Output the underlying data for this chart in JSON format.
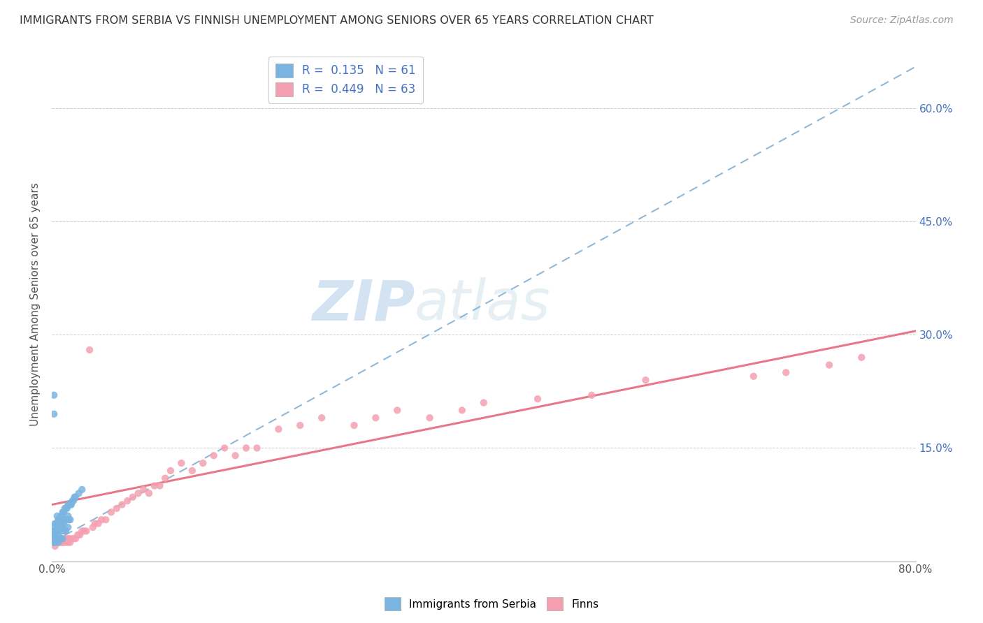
{
  "title": "IMMIGRANTS FROM SERBIA VS FINNISH UNEMPLOYMENT AMONG SENIORS OVER 65 YEARS CORRELATION CHART",
  "source": "Source: ZipAtlas.com",
  "ylabel": "Unemployment Among Seniors over 65 years",
  "xlim": [
    0.0,
    0.8
  ],
  "ylim": [
    0.0,
    0.68
  ],
  "xticks": [
    0.0,
    0.1,
    0.2,
    0.3,
    0.4,
    0.5,
    0.6,
    0.7,
    0.8
  ],
  "xticklabels": [
    "0.0%",
    "",
    "",
    "",
    "",
    "",
    "",
    "",
    "80.0%"
  ],
  "ytick_positions": [
    0.0,
    0.15,
    0.3,
    0.45,
    0.6
  ],
  "yticklabels_right": [
    "",
    "15.0%",
    "30.0%",
    "45.0%",
    "60.0%"
  ],
  "scatter1_color": "#7ab4e0",
  "scatter2_color": "#f4a0b0",
  "line1_color": "#90b8d8",
  "line2_color": "#e87888",
  "watermark_color": "#c8dff0",
  "line1_x0": 0.0,
  "line1_y0": 0.025,
  "line1_x1": 0.8,
  "line1_y1": 0.655,
  "line2_x0": 0.0,
  "line2_y0": 0.075,
  "line2_x1": 0.8,
  "line2_y1": 0.305,
  "scatter1_x": [
    0.001,
    0.001,
    0.002,
    0.002,
    0.002,
    0.002,
    0.003,
    0.003,
    0.003,
    0.003,
    0.003,
    0.004,
    0.004,
    0.004,
    0.005,
    0.005,
    0.005,
    0.005,
    0.006,
    0.006,
    0.006,
    0.006,
    0.007,
    0.007,
    0.007,
    0.008,
    0.008,
    0.008,
    0.009,
    0.009,
    0.009,
    0.01,
    0.01,
    0.01,
    0.01,
    0.011,
    0.011,
    0.012,
    0.012,
    0.012,
    0.013,
    0.013,
    0.013,
    0.014,
    0.014,
    0.015,
    0.015,
    0.015,
    0.016,
    0.016,
    0.017,
    0.017,
    0.018,
    0.019,
    0.02,
    0.021,
    0.022,
    0.025,
    0.028,
    0.002,
    0.002
  ],
  "scatter1_y": [
    0.045,
    0.035,
    0.04,
    0.035,
    0.03,
    0.025,
    0.05,
    0.04,
    0.035,
    0.03,
    0.025,
    0.05,
    0.04,
    0.03,
    0.06,
    0.05,
    0.04,
    0.03,
    0.055,
    0.045,
    0.035,
    0.025,
    0.055,
    0.045,
    0.03,
    0.055,
    0.045,
    0.03,
    0.06,
    0.05,
    0.04,
    0.065,
    0.055,
    0.045,
    0.03,
    0.065,
    0.05,
    0.07,
    0.055,
    0.04,
    0.07,
    0.055,
    0.04,
    0.07,
    0.055,
    0.075,
    0.06,
    0.045,
    0.075,
    0.055,
    0.075,
    0.055,
    0.075,
    0.08,
    0.08,
    0.085,
    0.085,
    0.09,
    0.095,
    0.22,
    0.195
  ],
  "scatter2_x": [
    0.003,
    0.005,
    0.007,
    0.008,
    0.009,
    0.01,
    0.011,
    0.012,
    0.013,
    0.014,
    0.015,
    0.016,
    0.017,
    0.018,
    0.02,
    0.022,
    0.024,
    0.026,
    0.028,
    0.03,
    0.032,
    0.035,
    0.038,
    0.04,
    0.043,
    0.046,
    0.05,
    0.055,
    0.06,
    0.065,
    0.07,
    0.075,
    0.08,
    0.085,
    0.09,
    0.095,
    0.1,
    0.105,
    0.11,
    0.12,
    0.13,
    0.14,
    0.15,
    0.16,
    0.17,
    0.18,
    0.19,
    0.21,
    0.23,
    0.25,
    0.28,
    0.3,
    0.32,
    0.35,
    0.38,
    0.4,
    0.45,
    0.5,
    0.55,
    0.65,
    0.68,
    0.72,
    0.75
  ],
  "scatter2_y": [
    0.02,
    0.025,
    0.025,
    0.03,
    0.025,
    0.025,
    0.025,
    0.03,
    0.025,
    0.03,
    0.025,
    0.03,
    0.025,
    0.03,
    0.03,
    0.03,
    0.035,
    0.035,
    0.04,
    0.04,
    0.04,
    0.28,
    0.045,
    0.05,
    0.05,
    0.055,
    0.055,
    0.065,
    0.07,
    0.075,
    0.08,
    0.085,
    0.09,
    0.095,
    0.09,
    0.1,
    0.1,
    0.11,
    0.12,
    0.13,
    0.12,
    0.13,
    0.14,
    0.15,
    0.14,
    0.15,
    0.15,
    0.175,
    0.18,
    0.19,
    0.18,
    0.19,
    0.2,
    0.19,
    0.2,
    0.21,
    0.215,
    0.22,
    0.24,
    0.245,
    0.25,
    0.26,
    0.27
  ]
}
